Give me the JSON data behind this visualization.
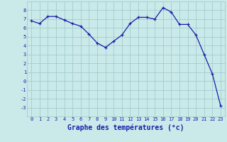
{
  "hours": [
    0,
    1,
    2,
    3,
    4,
    5,
    6,
    7,
    8,
    9,
    10,
    11,
    12,
    13,
    14,
    15,
    16,
    17,
    18,
    19,
    20,
    21,
    22,
    23
  ],
  "temperatures": [
    6.8,
    6.5,
    7.3,
    7.3,
    6.9,
    6.5,
    6.2,
    5.3,
    4.3,
    3.8,
    4.5,
    5.2,
    6.5,
    7.2,
    7.2,
    7.0,
    8.3,
    7.8,
    6.4,
    6.4,
    5.2,
    3.0,
    0.8,
    -2.8
  ],
  "line_color": "#1a1aaa",
  "marker": "+",
  "bg_color": "#caeaea",
  "grid_color": "#a0cccc",
  "xlabel": "Graphe des températures (°c)",
  "xlabel_color": "#1a1aaa",
  "ylim": [
    -4,
    9
  ],
  "yticks": [
    -3,
    -2,
    -1,
    0,
    1,
    2,
    3,
    4,
    5,
    6,
    7,
    8
  ],
  "xticks": [
    0,
    1,
    2,
    3,
    4,
    5,
    6,
    7,
    8,
    9,
    10,
    11,
    12,
    13,
    14,
    15,
    16,
    17,
    18,
    19,
    20,
    21,
    22,
    23
  ],
  "tick_color": "#1a1aaa",
  "tick_fontsize": 5,
  "xlabel_fontsize": 7
}
